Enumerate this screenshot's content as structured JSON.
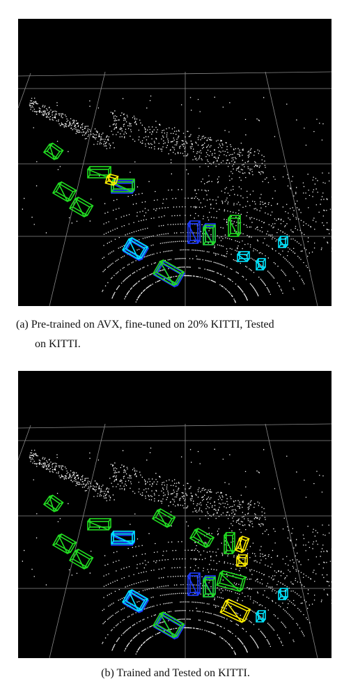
{
  "colors": {
    "background": "#000000",
    "grid": "#8a8a8a",
    "points": "#ffffff",
    "ground_truth_box": "#1e3cff",
    "car_prediction_box": "#22dd22",
    "pedestrian_prediction_box": "#ffee00",
    "cyclist_prediction_box": "#00e5ff"
  },
  "captions": {
    "a_line1": "(a) Pre-trained on AVX, fine-tuned on 20% KITTI, Tested",
    "a_line2": "on KITTI.",
    "b": "(b) Trained and Tested on KITTI."
  }
}
